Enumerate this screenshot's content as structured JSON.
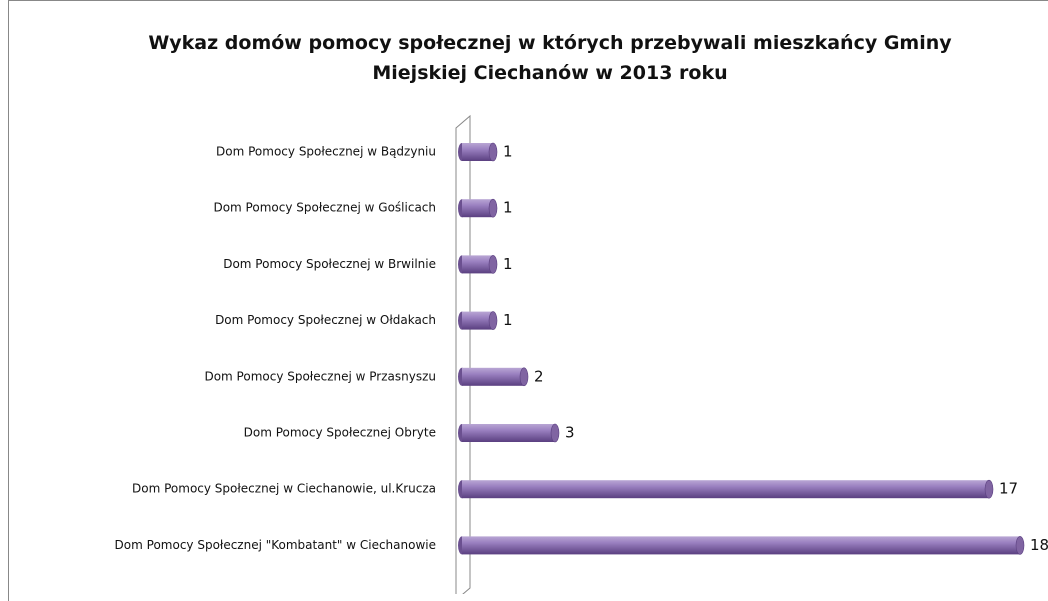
{
  "chart_data": {
    "type": "bar",
    "orientation": "horizontal",
    "title": "Wykaz domów pomocy społecznej w których przebywali mieszkańcy Gminy Miejskiej Ciechanów w 2013 roku",
    "categories": [
      "Dom Pomocy Społecznej w Bądzyniu",
      "Dom Pomocy Społecznej w Goślicach",
      "Dom Pomocy Społecznej w Brwilnie",
      "Dom Pomocy Społecznej w Ołdakach",
      "Dom Pomocy Społecznej w Przasnyszu",
      "Dom Pomocy Społecznej Obryte",
      "Dom Pomocy Społecznej w Ciechanowie, ul.Krucza",
      "Dom Pomocy Społecznej \"Kombatant\" w Ciechanowie"
    ],
    "values": [
      1,
      1,
      1,
      1,
      2,
      3,
      17,
      18
    ],
    "color": "#8064a2"
  }
}
